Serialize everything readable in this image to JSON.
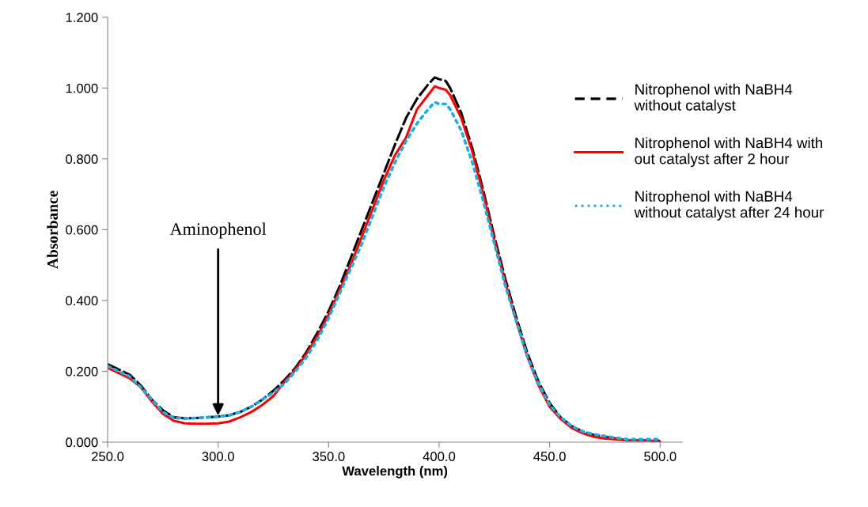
{
  "chart_data": {
    "type": "line",
    "xlabel": "Wavelength (nm)",
    "ylabel": "Absorbance",
    "x": [
      250,
      255,
      260,
      265,
      270,
      275,
      280,
      285,
      290,
      295,
      300,
      305,
      310,
      315,
      320,
      325,
      330,
      335,
      340,
      345,
      350,
      355,
      360,
      365,
      370,
      375,
      380,
      385,
      390,
      395,
      398,
      400,
      403,
      405,
      410,
      415,
      420,
      425,
      430,
      435,
      440,
      445,
      450,
      455,
      460,
      465,
      470,
      475,
      480,
      485,
      490,
      495,
      500
    ],
    "series": [
      {
        "name": "Nitrophenol with NaBH4\nwithout catalyst",
        "color": "#000000",
        "line_style": "dashed",
        "values": [
          0.22,
          0.205,
          0.19,
          0.16,
          0.12,
          0.09,
          0.07,
          0.067,
          0.068,
          0.07,
          0.072,
          0.076,
          0.085,
          0.1,
          0.12,
          0.145,
          0.175,
          0.21,
          0.255,
          0.31,
          0.37,
          0.44,
          0.52,
          0.6,
          0.68,
          0.76,
          0.84,
          0.915,
          0.97,
          1.01,
          1.03,
          1.025,
          1.02,
          1.0,
          0.93,
          0.83,
          0.71,
          0.58,
          0.46,
          0.35,
          0.25,
          0.17,
          0.11,
          0.07,
          0.045,
          0.03,
          0.02,
          0.015,
          0.01,
          0.005,
          0.005,
          0.005,
          0.003
        ]
      },
      {
        "name": "Nitrophenol with NaBH4 with\nout catalyst after 2 hour",
        "color": "#ff0000",
        "line_style": "solid",
        "values": [
          0.21,
          0.195,
          0.18,
          0.155,
          0.115,
          0.08,
          0.06,
          0.053,
          0.052,
          0.052,
          0.053,
          0.058,
          0.07,
          0.085,
          0.105,
          0.13,
          0.17,
          0.205,
          0.25,
          0.3,
          0.36,
          0.43,
          0.5,
          0.58,
          0.66,
          0.74,
          0.81,
          0.86,
          0.94,
          0.98,
          1.005,
          1.0,
          0.995,
          0.98,
          0.915,
          0.82,
          0.7,
          0.57,
          0.45,
          0.34,
          0.24,
          0.16,
          0.1,
          0.065,
          0.04,
          0.025,
          0.015,
          0.01,
          0.008,
          0.005,
          0.005,
          0.005,
          0.0
        ]
      },
      {
        "name": "Nitrophenol with NaBH4\nwithout catalyst after 24 hour",
        "color": "#1aafe6",
        "line_style": "dotted",
        "values": [
          0.215,
          0.2,
          0.185,
          0.155,
          0.12,
          0.085,
          0.068,
          0.067,
          0.068,
          0.07,
          0.072,
          0.076,
          0.085,
          0.1,
          0.12,
          0.14,
          0.165,
          0.2,
          0.24,
          0.29,
          0.35,
          0.42,
          0.49,
          0.56,
          0.64,
          0.72,
          0.79,
          0.85,
          0.9,
          0.94,
          0.96,
          0.955,
          0.955,
          0.94,
          0.88,
          0.79,
          0.68,
          0.56,
          0.44,
          0.34,
          0.24,
          0.165,
          0.105,
          0.07,
          0.045,
          0.03,
          0.022,
          0.017,
          0.012,
          0.008,
          0.008,
          0.008,
          0.008
        ]
      }
    ],
    "xlim": [
      250,
      510
    ],
    "xticks": [
      {
        "value": 250,
        "label": "250.0"
      },
      {
        "value": 300,
        "label": "300.0"
      },
      {
        "value": 350,
        "label": "350.0"
      },
      {
        "value": 400,
        "label": "400.0"
      },
      {
        "value": 450,
        "label": "450.0"
      },
      {
        "value": 500,
        "label": "500.0"
      }
    ],
    "ylim": [
      0,
      1.2
    ],
    "yticks": [
      {
        "value": 0,
        "label": "0.000"
      },
      {
        "value": 0.2,
        "label": "0.200"
      },
      {
        "value": 0.4,
        "label": "0.400"
      },
      {
        "value": 0.6,
        "label": "0.600"
      },
      {
        "value": 0.8,
        "label": "0.800"
      },
      {
        "value": 1.0,
        "label": "1.000"
      },
      {
        "value": 1.2,
        "label": "1.200"
      }
    ],
    "annotations": [
      {
        "text": "Aminophenol",
        "x": 300,
        "y": 0.075
      }
    ],
    "grid": false,
    "legend": "right"
  }
}
